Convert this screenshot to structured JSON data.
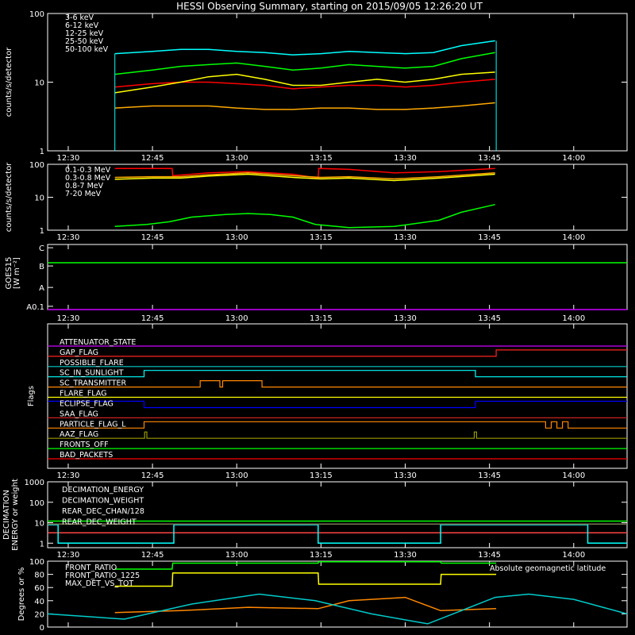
{
  "title": "HESSI Observing Summary, starting on 2015/09/05 12:26:20 UT",
  "x_axis": {
    "ticks": [
      "12:30",
      "12:45",
      "13:00",
      "13:15",
      "13:30",
      "13:45",
      "14:00"
    ],
    "tick_minutes": [
      30,
      45,
      60,
      75,
      90,
      105,
      120
    ],
    "range_minutes": [
      26.33,
      129.5
    ]
  },
  "observation_window_minutes": [
    38.3,
    106.2
  ],
  "chart_data": [
    {
      "id": "low_energy",
      "type": "line",
      "ylabel": "counts/s/detector",
      "yscale": "log",
      "ylim": [
        1,
        100
      ],
      "yticks": [
        "1",
        "10",
        "100"
      ],
      "ytick_values": [
        1,
        10,
        100
      ],
      "series": [
        {
          "name": "3-6 keV",
          "color": "#ff0000",
          "x": [
            38.3,
            45,
            50,
            55,
            60,
            65,
            70,
            75,
            80,
            85,
            90,
            95,
            100,
            106
          ],
          "values": [
            8.5,
            9.5,
            10,
            10,
            9.5,
            9,
            8,
            8.5,
            9,
            9,
            8.5,
            9,
            10,
            11
          ]
        },
        {
          "name": "6-12 keV",
          "color": "#ffaa00",
          "x": [
            38.3,
            45,
            50,
            55,
            60,
            65,
            70,
            75,
            80,
            85,
            90,
            95,
            100,
            106
          ],
          "values": [
            4.2,
            4.5,
            4.5,
            4.5,
            4.2,
            4.0,
            4.0,
            4.2,
            4.2,
            4.0,
            4.0,
            4.2,
            4.5,
            5.0
          ]
        },
        {
          "name": "12-25 keV",
          "color": "#ffff00",
          "x": [
            38.3,
            45,
            50,
            55,
            60,
            65,
            70,
            75,
            80,
            85,
            90,
            95,
            100,
            106
          ],
          "values": [
            7,
            8.5,
            10,
            12,
            13,
            11,
            9,
            9,
            10,
            11,
            10,
            11,
            13,
            14
          ]
        },
        {
          "name": "25-50 keV",
          "color": "#00ff00",
          "x": [
            38.3,
            45,
            50,
            55,
            60,
            65,
            70,
            75,
            80,
            85,
            90,
            95,
            100,
            106
          ],
          "values": [
            13,
            15,
            17,
            18,
            19,
            17,
            15,
            16,
            18,
            17,
            16,
            17,
            22,
            27
          ]
        },
        {
          "name": "50-100 keV",
          "color": "#00ffff",
          "x": [
            38.3,
            45,
            50,
            55,
            60,
            65,
            70,
            75,
            80,
            85,
            90,
            95,
            100,
            106
          ],
          "values": [
            26,
            28,
            30,
            30,
            28,
            27,
            25,
            26,
            28,
            27,
            26,
            27,
            34,
            40
          ]
        }
      ]
    },
    {
      "id": "high_energy",
      "type": "line",
      "ylabel": "counts/s/detector",
      "yscale": "log",
      "ylim": [
        1,
        100
      ],
      "yticks": [
        "1",
        "10",
        "100"
      ],
      "ytick_values": [
        1,
        10,
        100
      ],
      "series": [
        {
          "name": "0.1-0.3 MeV",
          "color": "#ff0000",
          "x": [
            38.3,
            48.5,
            48.6,
            55,
            62,
            70,
            74.5,
            74.6,
            80,
            88,
            96,
            106
          ],
          "values": [
            75,
            75,
            45,
            55,
            60,
            50,
            38,
            75,
            70,
            55,
            60,
            75
          ]
        },
        {
          "name": "0.3-0.8 MeV",
          "color": "#ffaa00",
          "x": [
            38.3,
            45,
            50,
            55,
            62,
            70,
            75,
            80,
            88,
            96,
            106
          ],
          "values": [
            40,
            42,
            42,
            48,
            55,
            45,
            40,
            42,
            36,
            42,
            55
          ]
        },
        {
          "name": "0.8-7 MeV",
          "color": "#ffff00",
          "x": [
            38.3,
            45,
            50,
            55,
            62,
            70,
            75,
            80,
            88,
            96,
            106
          ],
          "values": [
            35,
            38,
            38,
            44,
            50,
            40,
            36,
            38,
            32,
            38,
            50
          ]
        },
        {
          "name": "7-20 MeV",
          "color": "#00ff00",
          "x": [
            38.3,
            44,
            48,
            52,
            58,
            62,
            66,
            70,
            74,
            80,
            88,
            96,
            100,
            106
          ],
          "values": [
            1.3,
            1.5,
            1.8,
            2.5,
            3.0,
            3.2,
            3.0,
            2.5,
            1.5,
            1.2,
            1.3,
            2.0,
            3.5,
            6.0
          ]
        }
      ]
    },
    {
      "id": "goes",
      "type": "line",
      "ylabel": "GOES15",
      "ylabel_units": "[W m⁻²]",
      "yscale": "category",
      "yticks": [
        "C",
        "B",
        "A",
        "A0.1"
      ],
      "series": [
        {
          "name": "GOES",
          "color": "#00ff00",
          "x": [
            26.33,
            60,
            90,
            129.5
          ],
          "values": [
            0.28,
            0.28,
            0.28,
            0.28
          ]
        },
        {
          "name": "baseline",
          "color": "#cc00ff",
          "x": [
            26.33,
            129.5
          ],
          "values": [
            1.0,
            1.0
          ]
        }
      ]
    },
    {
      "id": "flags",
      "type": "step",
      "ylabel": "Flags",
      "flags": [
        {
          "name": "ATTENUATOR_STATE",
          "color": "#cc00ff",
          "steps": [
            [
              26.33,
              0
            ],
            [
              129.5,
              0
            ]
          ]
        },
        {
          "name": "GAP_FLAG",
          "color": "#ff2222",
          "steps": [
            [
              26.33,
              0
            ],
            [
              106.2,
              0
            ],
            [
              106.2,
              1
            ],
            [
              129.5,
              1
            ]
          ]
        },
        {
          "name": "POSSIBLE_FLARE",
          "color": "#00cccc",
          "steps": [
            [
              26.33,
              0
            ],
            [
              129.5,
              0
            ]
          ]
        },
        {
          "name": "SC_IN_SUNLIGHT",
          "color": "#00ffff",
          "steps": [
            [
              26.33,
              0
            ],
            [
              43.5,
              0
            ],
            [
              43.5,
              1
            ],
            [
              102.5,
              1
            ],
            [
              102.5,
              0
            ],
            [
              129.5,
              0
            ]
          ]
        },
        {
          "name": "SC_TRANSMITTER",
          "color": "#ff8800",
          "steps": [
            [
              26.33,
              0
            ],
            [
              53.5,
              0
            ],
            [
              53.5,
              1
            ],
            [
              57,
              1
            ],
            [
              57,
              0
            ],
            [
              57.5,
              0
            ],
            [
              57.5,
              1
            ],
            [
              64.5,
              1
            ],
            [
              64.5,
              0
            ],
            [
              129.5,
              0
            ]
          ]
        },
        {
          "name": "FLARE_FLAG",
          "color": "#ffff00",
          "steps": [
            [
              26.33,
              0
            ],
            [
              129.5,
              0
            ]
          ]
        },
        {
          "name": "ECLIPSE_FLAG",
          "color": "#0000ff",
          "steps": [
            [
              26.33,
              1
            ],
            [
              43.5,
              1
            ],
            [
              43.5,
              0
            ],
            [
              102.5,
              0
            ],
            [
              102.5,
              1
            ],
            [
              129.5,
              1
            ]
          ]
        },
        {
          "name": "SAA_FLAG",
          "color": "#cc2222",
          "steps": [
            [
              26.33,
              0
            ],
            [
              129.5,
              0
            ]
          ]
        },
        {
          "name": "PARTICLE_FLAG_L",
          "color": "#ff8800",
          "steps": [
            [
              26.33,
              0
            ],
            [
              43.5,
              0
            ],
            [
              43.5,
              1
            ],
            [
              115,
              1
            ],
            [
              115,
              0
            ],
            [
              116,
              0
            ],
            [
              116,
              1
            ],
            [
              117,
              1
            ],
            [
              117,
              0
            ],
            [
              118,
              0
            ],
            [
              118,
              1
            ],
            [
              119,
              1
            ],
            [
              119,
              0
            ],
            [
              129.5,
              0
            ]
          ]
        },
        {
          "name": "AAZ_FLAG",
          "color": "#999900",
          "steps": [
            [
              26.33,
              0
            ],
            [
              43.6,
              0
            ],
            [
              43.6,
              1
            ],
            [
              44,
              1
            ],
            [
              44,
              0
            ],
            [
              102.3,
              0
            ],
            [
              102.3,
              1
            ],
            [
              102.7,
              1
            ],
            [
              102.7,
              0
            ],
            [
              129.5,
              0
            ]
          ]
        },
        {
          "name": "FRONTS_OFF",
          "color": "#00ff00",
          "steps": [
            [
              26.33,
              0
            ],
            [
              129.5,
              0
            ]
          ]
        },
        {
          "name": "BAD_PACKETS",
          "color": "#ff0000",
          "steps": [
            [
              26.33,
              0
            ],
            [
              129.5,
              0
            ]
          ]
        }
      ]
    },
    {
      "id": "decimation",
      "type": "line",
      "ylabel": "DECIMATION",
      "ylabel2": "ENERGY or weight",
      "yscale": "log",
      "ylim": [
        0.6,
        1000
      ],
      "yticks": [
        "1",
        "10",
        "100",
        "1000"
      ],
      "ytick_values": [
        1,
        10,
        100,
        1000
      ],
      "series": [
        {
          "name": "DECIMATION_ENERGY",
          "color": "#00ff00",
          "x": [
            26.33,
            129.5
          ],
          "values": [
            12,
            12
          ]
        },
        {
          "name": "DECIMATION_WEIGHT",
          "color": "#ff4444",
          "x": [
            26.33,
            129.5
          ],
          "values": [
            3.2,
            3.2
          ]
        },
        {
          "name": "REAR_DEC_CHAN/128",
          "color": "#00ffff",
          "x": [
            26.33,
            28.2,
            28.2,
            48.8,
            48.8,
            74.5,
            74.5,
            96.3,
            96.3,
            122.5,
            122.5,
            129.5
          ],
          "values": [
            8,
            8,
            1,
            1,
            8,
            8,
            1,
            1,
            8,
            8,
            1,
            1
          ]
        },
        {
          "name": "REAR_DEC_WEIGHT",
          "color": "#7a7a55",
          "x": [
            26.33,
            129.5
          ],
          "values": [
            8.5,
            8.5
          ]
        }
      ]
    },
    {
      "id": "ratios",
      "type": "line",
      "ylabel": "Degrees or %",
      "ylim": [
        0,
        100
      ],
      "yticks": [
        "0",
        "20",
        "40",
        "60",
        "80",
        "100"
      ],
      "ytick_values": [
        0,
        20,
        40,
        60,
        80,
        100
      ],
      "annotation": "Absolute geomagnetic latitude",
      "series": [
        {
          "name": "FRONT_RATIO",
          "color": "#00ff00",
          "x": [
            38.3,
            48.5,
            48.6,
            74.5,
            74.6,
            96.3,
            96.4,
            106.2
          ],
          "values": [
            88,
            88,
            97,
            97,
            99,
            99,
            97,
            97
          ]
        },
        {
          "name": "FRONT_RATIO_1225",
          "color": "#ffff00",
          "x": [
            38.3,
            48.5,
            48.6,
            74.5,
            74.6,
            96.3,
            96.4,
            106.2
          ],
          "values": [
            62,
            62,
            82,
            82,
            65,
            65,
            80,
            80
          ]
        },
        {
          "name": "MAX_DET_VS_TOT",
          "color": "#ff8800",
          "x": [
            38.3,
            50,
            62,
            74.5,
            80,
            90,
            96.3,
            106.2
          ],
          "values": [
            22,
            25,
            30,
            28,
            40,
            45,
            25,
            28
          ]
        },
        {
          "name": "Absolute geomagnetic latitude",
          "color": "#00cccc",
          "x": [
            26.33,
            40,
            52,
            64,
            74,
            84,
            94,
            100,
            106,
            112,
            120,
            129.5
          ],
          "values": [
            20,
            12,
            35,
            50,
            40,
            20,
            5,
            25,
            45,
            50,
            42,
            20
          ]
        }
      ]
    }
  ]
}
